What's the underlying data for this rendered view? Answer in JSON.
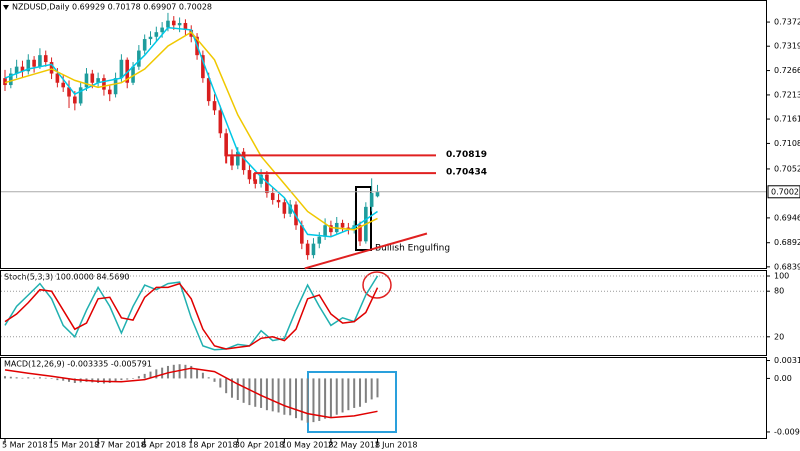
{
  "chart_data": [
    {
      "type": "candlestick",
      "title": "NZDUSD,Daily  0.69929 0.70178 0.69907 0.70028",
      "categories": [
        "5 Mar 2018",
        null,
        null,
        null,
        null,
        null,
        null,
        null,
        "15 Mar 2018",
        null,
        null,
        null,
        null,
        null,
        null,
        null,
        "27 Mar 2018",
        null,
        null,
        null,
        null,
        null,
        null,
        null,
        "6 Apr 2018",
        null,
        null,
        null,
        null,
        null,
        null,
        null,
        "18 Apr 2018",
        null,
        null,
        null,
        null,
        null,
        null,
        null,
        "30 Apr 2018",
        null,
        null,
        null,
        null,
        null,
        null,
        null,
        "10 May 2018",
        null,
        null,
        null,
        null,
        null,
        null,
        null,
        "22 May 2018",
        null,
        null,
        null,
        null,
        null,
        null,
        null,
        "1 Jun 2018"
      ],
      "candles": [
        [
          0.725,
          0.7268,
          0.7222,
          0.7235
        ],
        [
          0.7235,
          0.7272,
          0.7228,
          0.726
        ],
        [
          0.726,
          0.729,
          0.725,
          0.7275
        ],
        [
          0.7275,
          0.7288,
          0.7252,
          0.7265
        ],
        [
          0.7265,
          0.7302,
          0.7258,
          0.729
        ],
        [
          0.729,
          0.7298,
          0.7262,
          0.7275
        ],
        [
          0.7275,
          0.7315,
          0.727,
          0.73
        ],
        [
          0.73,
          0.731,
          0.7275,
          0.7285
        ],
        [
          0.7285,
          0.7295,
          0.7248,
          0.726
        ],
        [
          0.726,
          0.7272,
          0.723,
          0.724
        ],
        [
          0.724,
          0.7258,
          0.722,
          0.723
        ],
        [
          0.723,
          0.7245,
          0.7185,
          0.721
        ],
        [
          0.721,
          0.7222,
          0.718,
          0.7195
        ],
        [
          0.7195,
          0.7242,
          0.719,
          0.723
        ],
        [
          0.723,
          0.7272,
          0.7222,
          0.726
        ],
        [
          0.726,
          0.7268,
          0.7228,
          0.724
        ],
        [
          0.724,
          0.7262,
          0.7232,
          0.725
        ],
        [
          0.725,
          0.7258,
          0.7212,
          0.7225
        ],
        [
          0.7225,
          0.7235,
          0.72,
          0.7215
        ],
        [
          0.7215,
          0.7262,
          0.7208,
          0.725
        ],
        [
          0.725,
          0.7302,
          0.7242,
          0.729
        ],
        [
          0.729,
          0.7295,
          0.7228,
          0.724
        ],
        [
          0.724,
          0.7285,
          0.7235,
          0.7275
        ],
        [
          0.7275,
          0.7322,
          0.7268,
          0.731
        ],
        [
          0.731,
          0.7345,
          0.7302,
          0.7335
        ],
        [
          0.7335,
          0.7352,
          0.7322,
          0.734
        ],
        [
          0.734,
          0.7362,
          0.733,
          0.735
        ],
        [
          0.735,
          0.7372,
          0.7338,
          0.736
        ],
        [
          0.736,
          0.7392,
          0.7352,
          0.7375
        ],
        [
          0.7375,
          0.7385,
          0.7355,
          0.7365
        ],
        [
          0.7365,
          0.7382,
          0.735,
          0.737
        ],
        [
          0.737,
          0.7378,
          0.7342,
          0.7355
        ],
        [
          0.7355,
          0.7365,
          0.7328,
          0.734
        ],
        [
          0.734,
          0.7348,
          0.729,
          0.73
        ],
        [
          0.73,
          0.731,
          0.724,
          0.725
        ],
        [
          0.725,
          0.7262,
          0.719,
          0.72
        ],
        [
          0.72,
          0.7215,
          0.717,
          0.718
        ],
        [
          0.718,
          0.719,
          0.712,
          0.713
        ],
        [
          0.713,
          0.714,
          0.707,
          0.708
        ],
        [
          0.708,
          0.7095,
          0.705,
          0.706
        ],
        [
          0.706,
          0.71,
          0.7052,
          0.709
        ],
        [
          0.709,
          0.7098,
          0.704,
          0.705
        ],
        [
          0.705,
          0.7062,
          0.702,
          0.703
        ],
        [
          0.703,
          0.7045,
          0.701,
          0.702
        ],
        [
          0.702,
          0.7052,
          0.7012,
          0.704
        ],
        [
          0.704,
          0.7048,
          0.699,
          0.7
        ],
        [
          0.7,
          0.7012,
          0.6975,
          0.6985
        ],
        [
          0.6985,
          0.6998,
          0.6968,
          0.698
        ],
        [
          0.698,
          0.6988,
          0.6945,
          0.6955
        ],
        [
          0.6955,
          0.6985,
          0.6948,
          0.6975
        ],
        [
          0.6975,
          0.6982,
          0.692,
          0.693
        ],
        [
          0.693,
          0.694,
          0.6878,
          0.689
        ],
        [
          0.689,
          0.6898,
          0.6855,
          0.6865
        ],
        [
          0.6865,
          0.6902,
          0.6858,
          0.689
        ],
        [
          0.689,
          0.6915,
          0.688,
          0.6905
        ],
        [
          0.6905,
          0.6945,
          0.6898,
          0.693
        ],
        [
          0.693,
          0.694,
          0.6905,
          0.6915
        ],
        [
          0.6915,
          0.6948,
          0.691,
          0.6935
        ],
        [
          0.6935,
          0.6942,
          0.6915,
          0.6925
        ],
        [
          0.6925,
          0.6935,
          0.691,
          0.692
        ],
        [
          0.692,
          0.694,
          0.6912,
          0.693
        ],
        [
          0.693,
          0.6938,
          0.6885,
          0.6895
        ],
        [
          0.6895,
          0.698,
          0.689,
          0.697
        ],
        [
          0.697,
          0.7032,
          0.696,
          0.7
        ],
        [
          0.69929,
          0.70178,
          0.69907,
          0.70028
        ]
      ],
      "up_color": "#1e9c9c",
      "down_color": "#d81e1e",
      "ylim": [
        0.6837,
        0.742
      ],
      "yticks": [
        {
          "value": 0.7372,
          "label": "0.73720"
        },
        0.73195,
        0.72665,
        0.72135,
        {
          "value": 0.7161,
          "label": "0.71610"
        },
        {
          "value": 0.7108,
          "label": "0.71080"
        },
        0.70525,
        {
          "value": 0.6946,
          "label": "0.69460"
        },
        {
          "value": 0.6892,
          "label": "0.68920"
        },
        0.68395
      ],
      "current_price": 0.70028,
      "series": [
        {
          "color": "#00c8e6",
          "x": [
            0,
            4,
            8,
            12,
            16,
            20,
            24,
            28,
            32,
            36,
            40,
            44,
            48,
            52,
            56,
            60,
            64
          ],
          "values": [
            0.725,
            0.727,
            0.728,
            0.7215,
            0.724,
            0.725,
            0.73,
            0.736,
            0.7355,
            0.722,
            0.709,
            0.7035,
            0.699,
            0.691,
            0.6905,
            0.6925,
            0.696
          ]
        },
        {
          "color": "#f0c800",
          "x": [
            0,
            4,
            8,
            12,
            16,
            20,
            24,
            28,
            32,
            36,
            40,
            44,
            48,
            52,
            56,
            60,
            64
          ],
          "values": [
            0.724,
            0.7255,
            0.727,
            0.7245,
            0.723,
            0.724,
            0.727,
            0.732,
            0.735,
            0.729,
            0.717,
            0.708,
            0.702,
            0.696,
            0.6925,
            0.692,
            0.6945
          ]
        }
      ],
      "levels": [
        0.70819,
        0.70434
      ],
      "level_color": "#e02020",
      "trendline": {
        "x": [
          51.5,
          72.5
        ],
        "values": [
          0.6836,
          0.6912
        ]
      },
      "annotation": "Bullish Engulfing"
    },
    {
      "type": "line",
      "title": "Stoch(5,3,3) 100.0000 84.5690",
      "ylim": [
        0,
        100
      ],
      "yticks": [
        100,
        80,
        20
      ],
      "grid": true,
      "series": [
        {
          "color": "#20b0b0",
          "x": [
            0,
            2,
            4,
            6,
            8,
            10,
            12,
            14,
            16,
            18,
            20,
            22,
            24,
            26,
            28,
            30,
            32,
            34,
            36,
            38,
            40,
            42,
            44,
            46,
            48,
            50,
            52,
            54,
            56,
            58,
            60,
            62,
            64
          ],
          "values": [
            35,
            60,
            75,
            90,
            70,
            35,
            20,
            55,
            85,
            60,
            25,
            60,
            88,
            82,
            90,
            92,
            45,
            8,
            3,
            4,
            10,
            8,
            28,
            15,
            18,
            55,
            88,
            60,
            35,
            45,
            40,
            75,
            100
          ]
        },
        {
          "color": "#e00000",
          "x": [
            0,
            2,
            4,
            6,
            8,
            10,
            12,
            14,
            16,
            18,
            20,
            22,
            24,
            26,
            28,
            30,
            32,
            34,
            36,
            38,
            40,
            42,
            44,
            46,
            48,
            50,
            52,
            54,
            56,
            58,
            60,
            62,
            64
          ],
          "values": [
            40,
            50,
            65,
            82,
            80,
            55,
            30,
            38,
            70,
            72,
            45,
            42,
            72,
            85,
            85,
            90,
            70,
            30,
            8,
            4,
            6,
            8,
            18,
            20,
            15,
            30,
            70,
            75,
            50,
            38,
            40,
            52,
            84.569
          ]
        }
      ]
    },
    {
      "type": "bar",
      "title": "MACD(12,26,9) -0.003335 -0.005791",
      "ylim": [
        -0.0105,
        0.0036
      ],
      "yticks": [
        0.003156,
        {
          "value": 0,
          "label": "0.00"
        },
        -0.009434
      ],
      "color": "#808080",
      "values": [
        0.0004,
        0.0003,
        0.0002,
        0.0001,
        0.0002,
        0.0001,
        0.0002,
        0.0001,
        -0.0001,
        -0.0003,
        -0.0004,
        -0.0006,
        -0.0008,
        -0.0007,
        -0.0006,
        -0.0007,
        -0.0008,
        -0.0009,
        -0.0008,
        -0.0005,
        -0.0003,
        -0.0002,
        0.0,
        0.0004,
        0.0008,
        0.0012,
        0.0016,
        0.0019,
        0.0022,
        0.0024,
        0.0025,
        0.0024,
        0.0022,
        0.0017,
        0.001,
        0.0002,
        -0.0006,
        -0.0016,
        -0.0026,
        -0.0034,
        -0.0038,
        -0.0043,
        -0.0047,
        -0.005,
        -0.0052,
        -0.0056,
        -0.0058,
        -0.006,
        -0.0064,
        -0.0065,
        -0.007,
        -0.0074,
        -0.0078,
        -0.0077,
        -0.0075,
        -0.0071,
        -0.0068,
        -0.0064,
        -0.006,
        -0.0056,
        -0.0052,
        -0.005,
        -0.0043,
        -0.0037,
        -0.003335
      ],
      "series": [
        {
          "color": "#e00000",
          "x": [
            0,
            4,
            8,
            12,
            16,
            20,
            24,
            28,
            32,
            36,
            40,
            44,
            48,
            52,
            56,
            60,
            64
          ],
          "values": [
            0.0015,
            0.0009,
            0.0004,
            -0.0002,
            -0.0005,
            -0.0006,
            -0.0002,
            0.001,
            0.0018,
            0.0012,
            -0.001,
            -0.003,
            -0.0048,
            -0.0062,
            -0.0069,
            -0.0066,
            -0.005791
          ]
        }
      ]
    }
  ]
}
